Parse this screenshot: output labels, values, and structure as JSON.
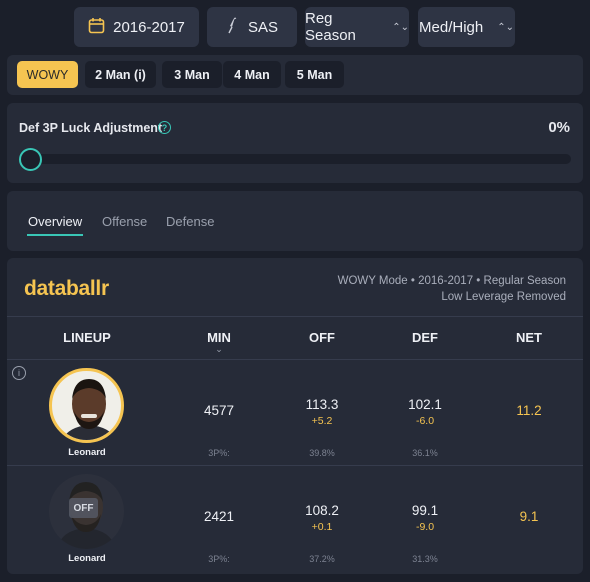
{
  "filters": {
    "season": "2016-2017",
    "team": "SAS",
    "season_type": "Reg Season",
    "leverage": "Med/High"
  },
  "modes": [
    "WOWY",
    "2 Man (i)",
    "3 Man",
    "4 Man",
    "5 Man"
  ],
  "luck": {
    "label": "Def 3P Luck Adjustment",
    "value": "0%",
    "slider_level": 0
  },
  "views": [
    "Overview",
    "Offense",
    "Defense"
  ],
  "card": {
    "logo": "databallr",
    "subtitle_line1": "WOWY Mode • 2016-2017 • Regular Season",
    "subtitle_line2": "Low Leverage Removed"
  },
  "columns": {
    "lineup": "LINEUP",
    "min": "MIN",
    "off": "OFF",
    "def": "DEF",
    "net": "NET"
  },
  "rows": [
    {
      "player": "Leonard",
      "status": "on",
      "off_tag": "",
      "min": "4577",
      "off": "113.3",
      "off_delta": "+5.2",
      "def": "102.1",
      "def_delta": "-6.0",
      "net": "11.2",
      "foot_label": "3P%:",
      "off_3p": "39.8%",
      "def_3p": "36.1%"
    },
    {
      "player": "Leonard",
      "status": "off",
      "off_tag": "OFF",
      "min": "2421",
      "off": "108.2",
      "off_delta": "+0.1",
      "def": "99.1",
      "def_delta": "-9.0",
      "net": "9.1",
      "foot_label": "3P%:",
      "off_3p": "37.2%",
      "def_3p": "31.3%"
    }
  ],
  "colors": {
    "accent": "#f5c451",
    "teal": "#39c6b6",
    "background": "#1b1f2a",
    "panel": "#262b38"
  }
}
